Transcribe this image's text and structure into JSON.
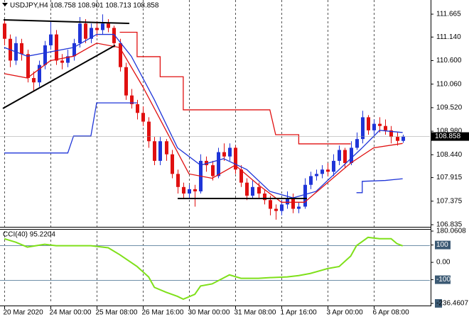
{
  "chart_data": [
    {
      "type": "candlestick",
      "title": "USDJPY,H4  108.758 108.901 108.713 108.858",
      "x": [
        0,
        1,
        2,
        3,
        4,
        5,
        6,
        7,
        8,
        9,
        10,
        11,
        12,
        13,
        14,
        15,
        16,
        17,
        18,
        19,
        20,
        21,
        22,
        23,
        24,
        25,
        26,
        27,
        28,
        29,
        30,
        31,
        32,
        33,
        34,
        35,
        36,
        37,
        38,
        39,
        40,
        41,
        42,
        43,
        44,
        45,
        46,
        47,
        48,
        49,
        50,
        51,
        52,
        53,
        54,
        55,
        56,
        57,
        58,
        59,
        60,
        61,
        62,
        63,
        64,
        65,
        66,
        67,
        68,
        69
      ],
      "open": [
        111.45,
        111.1,
        110.6,
        111.0,
        110.75,
        110.2,
        110.1,
        110.5,
        110.95,
        111.2,
        110.6,
        110.55,
        110.7,
        111.0,
        111.45,
        111.1,
        111.35,
        111.3,
        111.45,
        111.35,
        111.0,
        110.45,
        109.8,
        109.6,
        109.4,
        109.2,
        108.75,
        108.3,
        108.75,
        108.45,
        108.0,
        107.7,
        107.55,
        107.65,
        107.6,
        108.3,
        108.2,
        107.95,
        108.5,
        108.4,
        108.6,
        108.1,
        107.8,
        107.5,
        107.7,
        107.55,
        107.4,
        107.2,
        107.15,
        107.3,
        107.45,
        107.2,
        107.25,
        107.75,
        107.95,
        108.0,
        108.1,
        108.05,
        108.3,
        108.55,
        108.25,
        108.6,
        108.8,
        109.3,
        109.0,
        109.15,
        109.1,
        109.0,
        108.85,
        108.758
      ],
      "high": [
        111.55,
        111.2,
        111.15,
        111.1,
        110.85,
        110.35,
        110.6,
        111.05,
        111.5,
        111.3,
        110.75,
        110.85,
        111.1,
        111.6,
        111.55,
        111.45,
        111.5,
        111.66,
        111.55,
        111.4,
        111.1,
        110.55,
        109.95,
        109.7,
        109.55,
        109.3,
        108.85,
        108.85,
        108.8,
        108.55,
        108.1,
        107.8,
        107.75,
        107.75,
        108.45,
        108.4,
        108.3,
        108.6,
        108.7,
        108.7,
        108.65,
        108.2,
        107.9,
        107.85,
        107.8,
        107.65,
        107.5,
        107.3,
        107.4,
        107.6,
        107.55,
        107.35,
        107.9,
        108.05,
        108.1,
        108.2,
        108.25,
        108.45,
        108.65,
        108.6,
        108.75,
        108.95,
        109.45,
        109.35,
        109.25,
        109.3,
        109.25,
        109.1,
        108.95,
        108.901
      ],
      "low": [
        110.95,
        110.45,
        110.5,
        110.6,
        110.1,
        109.9,
        110.0,
        110.4,
        110.85,
        110.5,
        110.4,
        110.45,
        110.6,
        110.9,
        111.0,
        111.0,
        111.15,
        111.2,
        111.25,
        110.9,
        110.35,
        109.7,
        109.5,
        109.25,
        109.1,
        108.6,
        108.2,
        108.2,
        108.3,
        107.9,
        107.55,
        107.45,
        107.45,
        107.25,
        107.55,
        108.05,
        107.85,
        107.9,
        108.3,
        108.3,
        108.0,
        107.7,
        107.4,
        107.45,
        107.45,
        107.3,
        107.05,
        106.95,
        107.05,
        107.2,
        107.1,
        107.1,
        107.2,
        107.65,
        107.85,
        107.9,
        107.95,
        107.95,
        108.2,
        108.15,
        108.2,
        108.55,
        108.7,
        108.9,
        108.9,
        108.95,
        108.9,
        108.7,
        108.65,
        108.713
      ],
      "close": [
        111.1,
        110.6,
        111.0,
        110.75,
        110.2,
        110.1,
        110.5,
        110.95,
        111.2,
        110.6,
        110.55,
        110.7,
        111.0,
        111.45,
        111.1,
        111.35,
        111.3,
        111.45,
        111.35,
        111.0,
        110.45,
        109.8,
        109.6,
        109.4,
        109.2,
        108.75,
        108.3,
        108.75,
        108.45,
        108.0,
        107.7,
        107.55,
        107.65,
        107.6,
        108.3,
        108.2,
        107.95,
        108.5,
        108.4,
        108.6,
        108.1,
        107.8,
        107.5,
        107.7,
        107.55,
        107.4,
        107.2,
        107.15,
        107.3,
        107.45,
        107.2,
        107.25,
        107.75,
        107.95,
        108.0,
        108.1,
        108.05,
        108.3,
        108.55,
        108.25,
        108.6,
        108.8,
        109.3,
        109.0,
        109.15,
        109.1,
        109.0,
        108.85,
        108.758,
        108.858
      ],
      "up_color": "#1f35d8",
      "down_color": "#e01010",
      "series": [
        {
          "color": "#1f35d8",
          "x": [
            0,
            4,
            8,
            12,
            16,
            19,
            22,
            26,
            30,
            34,
            38,
            42,
            46,
            50,
            54,
            58,
            62,
            65,
            69
          ],
          "values": [
            110.9,
            110.7,
            110.8,
            110.9,
            111.2,
            111.2,
            110.7,
            109.7,
            108.6,
            108.2,
            108.35,
            108.1,
            107.6,
            107.45,
            107.6,
            108.1,
            108.6,
            109.0,
            108.95
          ]
        },
        {
          "color": "#e01010",
          "x": [
            0,
            4,
            8,
            12,
            16,
            20,
            24,
            28,
            32,
            36,
            40,
            44,
            48,
            52,
            56,
            60,
            64,
            69
          ],
          "values": [
            110.3,
            110.2,
            110.6,
            110.7,
            111.0,
            110.9,
            110.0,
            109.0,
            108.0,
            107.9,
            108.2,
            107.75,
            107.35,
            107.35,
            107.8,
            108.25,
            108.6,
            108.7
          ]
        },
        {
          "color": "#e01010",
          "x": [
            20,
            23,
            23,
            27,
            27,
            31,
            31,
            46,
            47,
            51,
            51,
            60
          ],
          "values": [
            111.25,
            111.25,
            110.69,
            110.69,
            110.23,
            110.23,
            109.47,
            109.47,
            108.9,
            108.9,
            108.69,
            108.69
          ]
        },
        {
          "color": "#1f35d8",
          "x": [
            0,
            11,
            12,
            15,
            16,
            23,
            null,
            61,
            62,
            62,
            66,
            69
          ],
          "values": [
            108.48,
            108.48,
            108.87,
            108.87,
            109.63,
            109.63,
            null,
            107.57,
            107.57,
            107.83,
            107.85,
            107.89
          ]
        }
      ],
      "last_price": 108.858,
      "xlim": [
        -0.74,
        73.72
      ],
      "xticks": [
        {
          "value": 0,
          "label": "20 Mar 2020"
        },
        {
          "value": 8,
          "label": "24 Mar 00:00"
        },
        {
          "value": 16,
          "label": "25 Mar 08:00"
        },
        {
          "value": 24,
          "label": "26 Mar 16:00"
        },
        {
          "value": 32,
          "label": "30 Mar 00:00"
        },
        {
          "value": 40,
          "label": "31 Mar 08:00"
        },
        {
          "value": 48,
          "label": "1 Apr 16:00"
        },
        {
          "value": 56,
          "label": "3 Apr 00:00"
        },
        {
          "value": 64,
          "label": "6 Apr 08:00"
        }
      ],
      "ylim": [
        106.786,
        111.99
      ],
      "yticks": [
        111.665,
        {
          "value": 111.14,
          "label": "111.140"
        },
        {
          "value": 110.6,
          "label": "110.600"
        },
        {
          "value": 110.06,
          "label": "110.060"
        },
        {
          "value": 109.52,
          "label": "109.520"
        },
        {
          "value": 108.98,
          "label": "108.980"
        },
        {
          "value": 108.44,
          "label": "108.440"
        },
        107.915,
        107.375,
        106.835
      ],
      "grid": "x"
    },
    {
      "type": "line",
      "title": "CCI(40) 95.2204",
      "series": [
        {
          "color": "#7fe01a",
          "x": [
            0,
            2,
            4,
            7,
            9,
            12,
            15,
            18,
            20,
            23,
            25,
            26,
            28,
            30,
            31,
            33,
            34,
            36,
            39,
            41,
            44,
            46,
            49,
            51,
            53,
            56,
            58,
            60,
            61,
            63,
            65,
            67,
            68,
            69
          ],
          "values": [
            136,
            116,
            88,
            104,
            96,
            96,
            96,
            84,
            44,
            -24,
            -84,
            -144,
            -172,
            -196,
            -212,
            -184,
            -136,
            -124,
            -72,
            -92,
            -92,
            -88,
            -84,
            -76,
            -64,
            -36,
            -24,
            36,
            96,
            144,
            136,
            136,
            108,
            95.2204
          ]
        }
      ],
      "levels": [
        100,
        -100
      ],
      "xlim": [
        -0.74,
        73.72
      ],
      "ylim": [
        -236.4607,
        180.0608
      ],
      "yticks": [
        180.0608,
        100,
        {
          "value": 0,
          "label": "0.00"
        },
        -100,
        -236.4607
      ]
    }
  ]
}
